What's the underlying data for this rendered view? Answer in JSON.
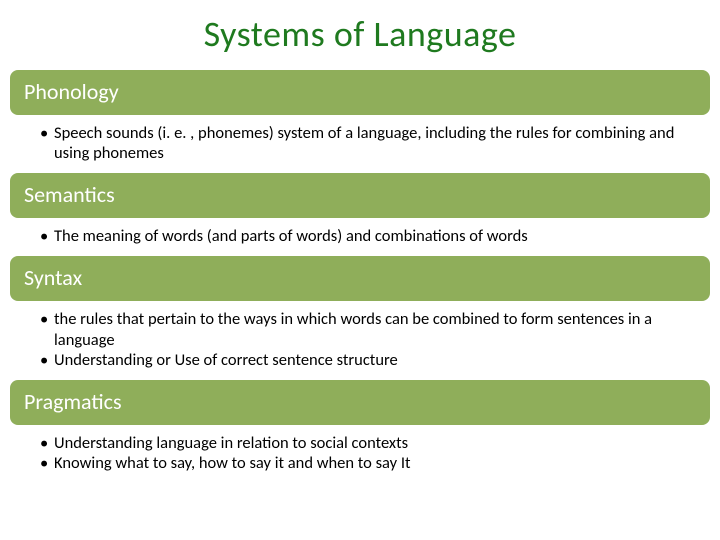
{
  "title": "Systems of Language",
  "title_color": "#1f7a1f",
  "header_bg": "#8fae5a",
  "header_text_color": "#ffffff",
  "body_text_color": "#000000",
  "sections": [
    {
      "heading": "Phonology",
      "bullets": [
        "Speech sounds (i. e. , phonemes) system of a language, including the rules for combining and using phonemes"
      ]
    },
    {
      "heading": "Semantics",
      "bullets": [
        "The meaning of words (and parts of words) and combinations of words"
      ]
    },
    {
      "heading": "Syntax",
      "bullets": [
        "the rules that pertain to the ways in which words can be combined to form sentences in a language",
        "Understanding or Use of correct sentence structure"
      ]
    },
    {
      "heading": "Pragmatics",
      "bullets": [
        "Understanding language in relation to social contexts",
        "Knowing what to say, how to say it and when to say It"
      ]
    }
  ]
}
